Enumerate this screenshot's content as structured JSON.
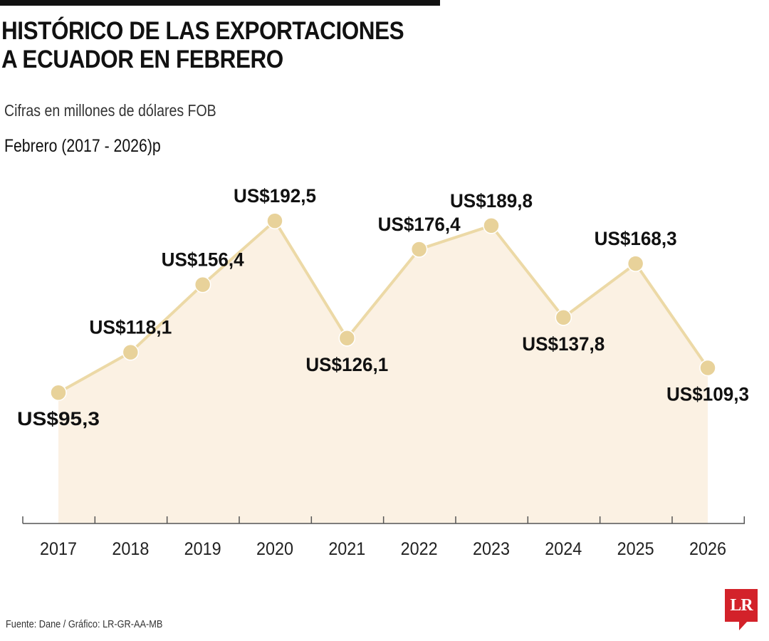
{
  "header": {
    "title_line1": "HISTÓRICO DE LAS EXPORTACIONES",
    "title_line2": "A ECUADOR EN FEBRERO",
    "subtitle": "Cifras en millones de dólares FOB",
    "period": "Febrero (2017 - 2026)p"
  },
  "chart_data": {
    "type": "line",
    "title": "HISTÓRICO DE LAS EXPORTACIONES A ECUADOR EN FEBRERO",
    "ylabel": "Cifras en millones de dólares FOB",
    "xlabel": "",
    "categories": [
      "2017",
      "2018",
      "2019",
      "2020",
      "2021",
      "2022",
      "2023",
      "2024",
      "2025",
      "2026"
    ],
    "values": [
      95.3,
      118.1,
      156.4,
      192.5,
      126.1,
      176.4,
      189.8,
      137.8,
      168.3,
      109.3
    ],
    "data_labels": [
      "US$95,3",
      "US$118,1",
      "US$156,4",
      "US$192,5",
      "US$126,1",
      "US$176,4",
      "US$189,8",
      "US$137,8",
      "US$168,3",
      "US$109,3"
    ],
    "label_positions": [
      "below",
      "above",
      "above",
      "above",
      "below",
      "above",
      "above",
      "below",
      "above",
      "below"
    ],
    "ylim": [
      0,
      200
    ],
    "grid": false,
    "colors": {
      "line": "#ecd9a6",
      "marker": "#e8d29a",
      "area": "#fbf1e3",
      "axis": "#555555",
      "text": "#111111"
    }
  },
  "footer": {
    "source": "Fuente: Dane / Gráfico: LR-GR-AA-MB",
    "logo": "LR"
  }
}
